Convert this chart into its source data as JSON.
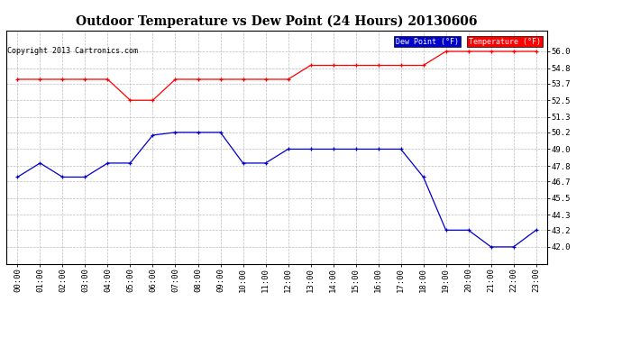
{
  "title": "Outdoor Temperature vs Dew Point (24 Hours) 20130606",
  "copyright": "Copyright 2013 Cartronics.com",
  "x_labels": [
    "00:00",
    "01:00",
    "02:00",
    "03:00",
    "04:00",
    "05:00",
    "06:00",
    "07:00",
    "08:00",
    "09:00",
    "10:00",
    "11:00",
    "12:00",
    "13:00",
    "14:00",
    "15:00",
    "16:00",
    "17:00",
    "18:00",
    "19:00",
    "20:00",
    "21:00",
    "22:00",
    "23:00"
  ],
  "temperature": [
    54.0,
    54.0,
    54.0,
    54.0,
    54.0,
    52.5,
    52.5,
    54.0,
    54.0,
    54.0,
    54.0,
    54.0,
    54.0,
    55.0,
    55.0,
    55.0,
    55.0,
    55.0,
    55.0,
    56.0,
    56.0,
    56.0,
    56.0,
    56.0
  ],
  "dew_point": [
    47.0,
    48.0,
    47.0,
    47.0,
    48.0,
    48.0,
    50.0,
    50.2,
    50.2,
    50.2,
    48.0,
    48.0,
    49.0,
    49.0,
    49.0,
    49.0,
    49.0,
    49.0,
    47.0,
    43.2,
    43.2,
    42.0,
    42.0,
    43.2
  ],
  "temp_color": "#ff0000",
  "dew_color": "#0000cc",
  "ylim_min": 40.8,
  "ylim_max": 57.5,
  "yticks": [
    42.0,
    43.2,
    44.3,
    45.5,
    46.7,
    47.8,
    49.0,
    50.2,
    51.3,
    52.5,
    53.7,
    54.8,
    56.0
  ],
  "bg_color": "#ffffff",
  "grid_color": "#bbbbbb",
  "legend_dew_label": "Dew Point (°F)",
  "legend_temp_label": "Temperature (°F)",
  "title_fontsize": 10,
  "axis_fontsize": 6.5,
  "copyright_fontsize": 6
}
